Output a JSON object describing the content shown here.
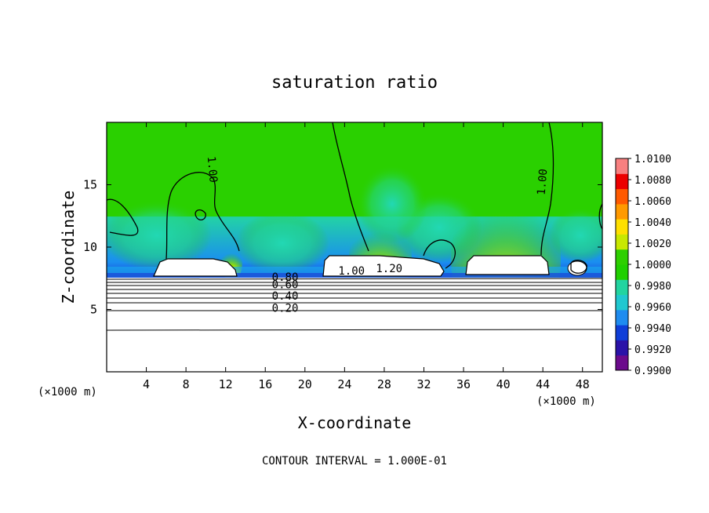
{
  "chart_data": {
    "type": "heatmap",
    "title": "saturation ratio",
    "xlabel": "X-coordinate",
    "ylabel": "Z-coordinate",
    "x_unit_label": "(×1000 m)",
    "x_unit_label_right": "(×1000 m)",
    "xlim": [
      0,
      50
    ],
    "ylim": [
      0,
      20
    ],
    "x_ticks": [
      4,
      8,
      12,
      16,
      20,
      24,
      28,
      32,
      36,
      40,
      44,
      48
    ],
    "y_ticks": [
      5,
      10,
      15
    ],
    "colorbar": {
      "min": 0.99,
      "max": 1.01,
      "tick_values": [
        1.01,
        1.008,
        1.006,
        1.004,
        1.002,
        1.0,
        0.998,
        0.996,
        0.994,
        0.992,
        0.99
      ],
      "tick_labels": [
        "1.0100",
        "1.0080",
        "1.0060",
        "1.0040",
        "1.0020",
        "1.0000",
        "0.9980",
        "0.9960",
        "0.9940",
        "0.9920",
        "0.9900"
      ],
      "colors": [
        "#6b0a8c",
        "#2a12a8",
        "#0f3ed8",
        "#1f8cf0",
        "#20c8d0",
        "#22d4a0",
        "#20d000",
        "#2ed000",
        "#c8e800",
        "#ffe000",
        "#ff9a00",
        "#ff5a00",
        "#ec0000",
        "#f88080"
      ]
    },
    "contour_labels": [
      {
        "text": "1.00",
        "x": 10.3,
        "y": 16.2,
        "rotate": 85
      },
      {
        "text": "1.00",
        "x": 44.3,
        "y": 15.2,
        "rotate": -85
      },
      {
        "text": "1.00",
        "x": 24.7,
        "y": 7.8,
        "rotate": 0
      },
      {
        "text": "1.20",
        "x": 28.5,
        "y": 8.0,
        "rotate": 0
      },
      {
        "text": "0.80",
        "x": 18.0,
        "y": 7.3,
        "rotate": 0
      },
      {
        "text": "0.60",
        "x": 18.0,
        "y": 6.7,
        "rotate": 0
      },
      {
        "text": "0.40",
        "x": 18.0,
        "y": 5.8,
        "rotate": 0
      },
      {
        "text": "0.20",
        "x": 18.0,
        "y": 4.8,
        "rotate": 0
      }
    ],
    "contour_interval_text": "CONTOUR INTERVAL = 1.000E-01"
  }
}
